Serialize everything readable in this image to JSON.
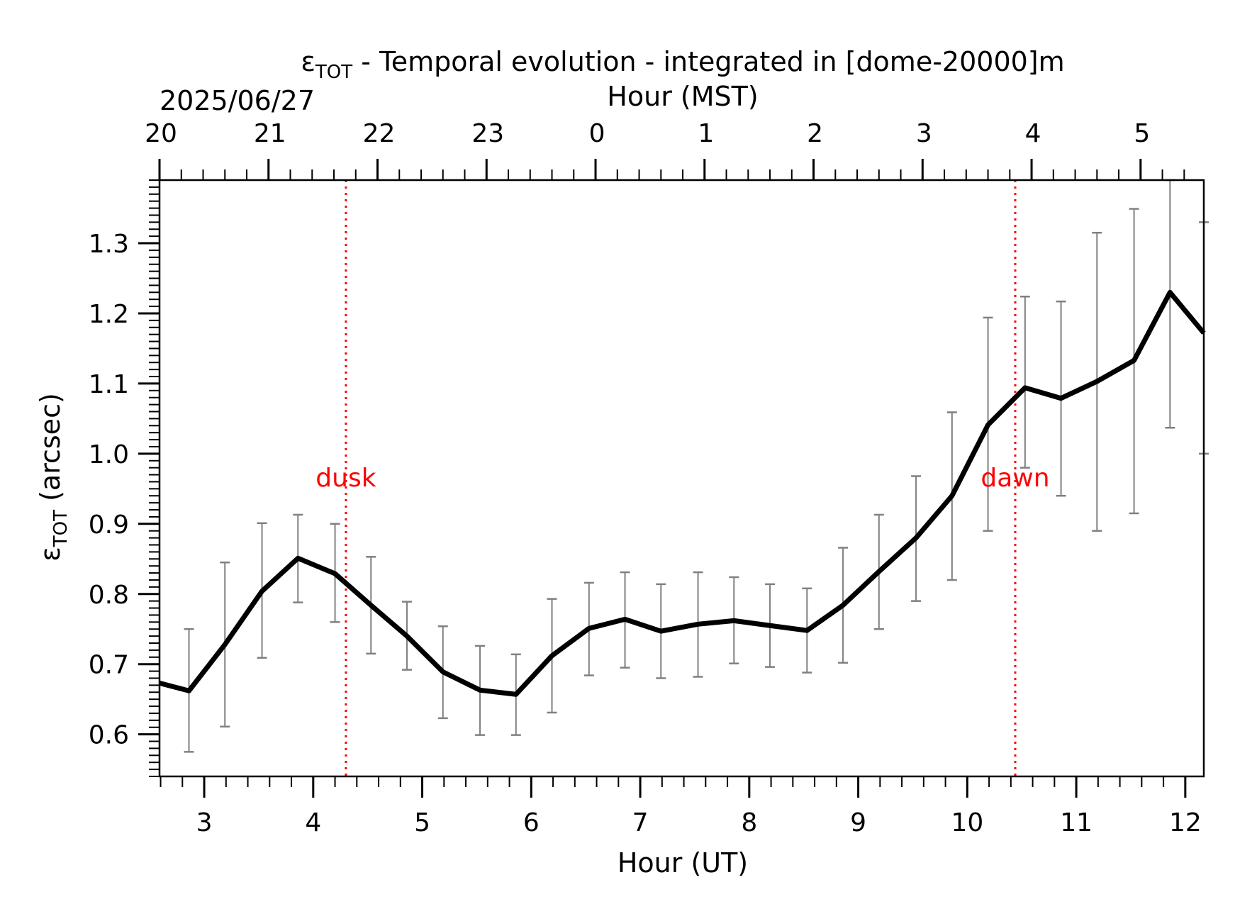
{
  "chart_data": {
    "type": "line",
    "title_prefix": "ε",
    "title_sub": "TOT",
    "title_rest": " - Temporal evolution - integrated in [dome-20000]m",
    "top_axis_label": "Hour (MST)",
    "date_label": "2025/06/27",
    "xlabel": "Hour (UT)",
    "ylabel_prefix": "ε",
    "ylabel_sub": "TOT",
    "ylabel_rest": " (arcsec)",
    "xlim": [
      2.59,
      12.17
    ],
    "ylim": [
      0.54,
      1.39
    ],
    "x_ticks": [
      3,
      4,
      5,
      6,
      7,
      8,
      9,
      10,
      11,
      12
    ],
    "x_tick_labels": [
      "3",
      "4",
      "5",
      "6",
      "7",
      "8",
      "9",
      "10",
      "11",
      "12"
    ],
    "top_tick_positions": [
      2.59,
      3.59,
      4.59,
      5.59,
      6.59,
      7.59,
      8.59,
      9.59,
      10.59,
      11.59
    ],
    "top_tick_labels": [
      "20",
      "21",
      "22",
      "23",
      "0",
      "1",
      "2",
      "3",
      "4",
      "5"
    ],
    "y_ticks": [
      0.6,
      0.7,
      0.8,
      0.9,
      1.0,
      1.1,
      1.2,
      1.3
    ],
    "y_tick_labels": [
      "0.6",
      "0.7",
      "0.8",
      "0.9",
      "1.0",
      "1.1",
      "1.2",
      "1.3"
    ],
    "series": [
      {
        "x": [
          2.59,
          2.86,
          3.19,
          3.53,
          3.86,
          4.2,
          4.53,
          4.86,
          5.19,
          5.53,
          5.86,
          6.19,
          6.53,
          6.86,
          7.19,
          7.53,
          7.86,
          8.19,
          8.53,
          8.86,
          9.19,
          9.53,
          9.86,
          10.19,
          10.53,
          10.86,
          11.19,
          11.53,
          11.86,
          12.17
        ],
        "y": [
          0.673,
          0.662,
          0.728,
          0.804,
          0.851,
          0.829,
          0.784,
          0.74,
          0.689,
          0.663,
          0.657,
          0.712,
          0.751,
          0.764,
          0.747,
          0.757,
          0.762,
          0.755,
          0.748,
          0.784,
          0.832,
          0.88,
          0.94,
          1.041,
          1.094,
          1.079,
          1.103,
          1.133,
          1.23,
          1.172
        ],
        "err_low": [
          null,
          0.575,
          0.611,
          0.709,
          0.788,
          0.76,
          0.715,
          0.692,
          0.623,
          0.599,
          0.599,
          0.631,
          0.684,
          0.695,
          0.68,
          0.682,
          0.701,
          0.696,
          0.688,
          0.702,
          0.75,
          0.79,
          0.82,
          0.89,
          0.98,
          0.94,
          0.89,
          0.915,
          1.037,
          1.0
        ],
        "err_high": [
          null,
          0.75,
          0.845,
          0.901,
          0.913,
          0.9,
          0.853,
          0.789,
          0.754,
          0.726,
          0.714,
          0.793,
          0.816,
          0.831,
          0.814,
          0.831,
          0.824,
          0.814,
          0.808,
          0.866,
          0.913,
          0.968,
          1.059,
          1.194,
          1.224,
          1.217,
          1.315,
          1.349,
          1.39,
          1.33
        ]
      }
    ],
    "vlines": [
      {
        "x": 4.3,
        "label": "dusk",
        "color": "#ff0000"
      },
      {
        "x": 10.44,
        "label": "dawn",
        "color": "#ff0000"
      }
    ],
    "line_color": "#000000",
    "errorbar_color": "#808080",
    "grid": false
  }
}
